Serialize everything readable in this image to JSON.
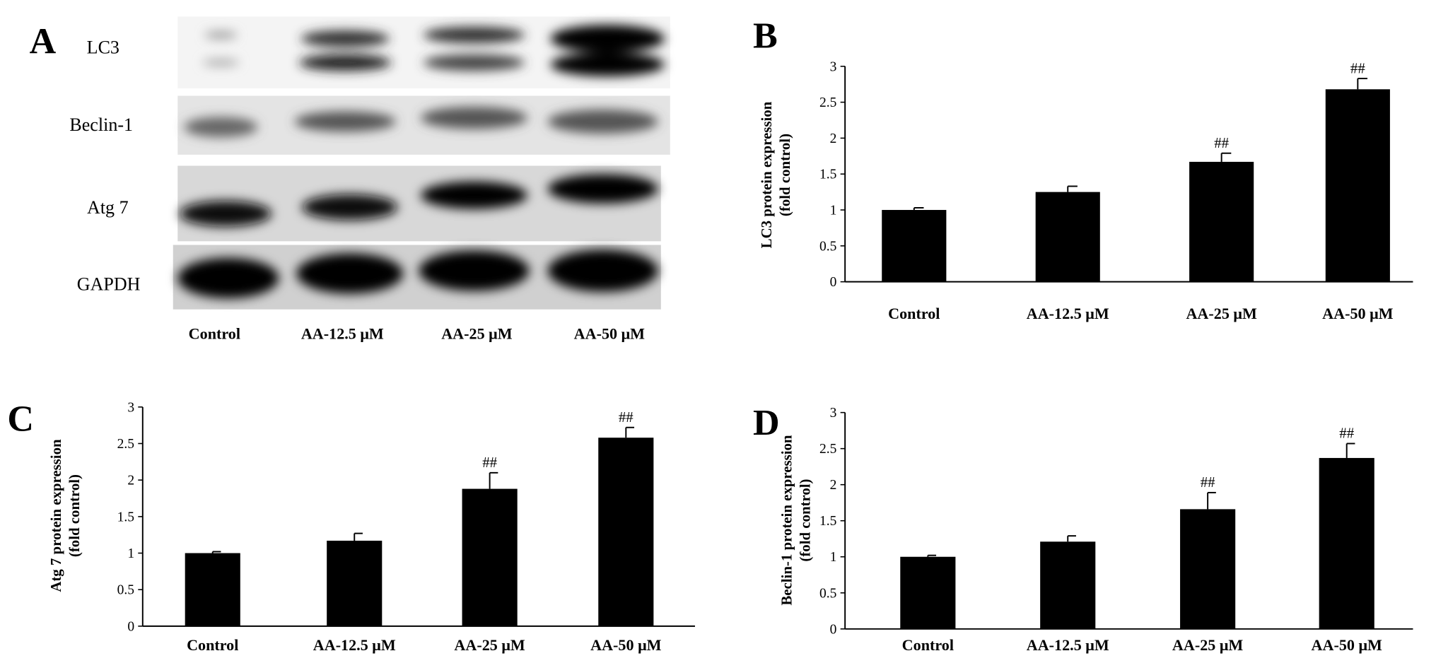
{
  "blot": {
    "label": "A",
    "rows": [
      "LC3",
      "Beclin-1",
      "Atg 7",
      "GAPDH"
    ],
    "lanes": [
      "Control",
      "AA-12.5 μM",
      "AA-25 μM",
      "AA-50 μM"
    ]
  },
  "chart_data": [
    {
      "type": "bar",
      "panel_label": "B",
      "ylabel": [
        "LC3 protein expression",
        "(fold control)"
      ],
      "categories": [
        "Control",
        "AA-12.5 μM",
        "AA-25 μM",
        "AA-50 μM"
      ],
      "values": [
        1.0,
        1.25,
        1.67,
        2.68
      ],
      "errors": [
        0.03,
        0.08,
        0.12,
        0.15
      ],
      "annotations": [
        null,
        null,
        "##",
        "##"
      ],
      "color": "#000000",
      "ylim": [
        0,
        3
      ],
      "yticks": [
        0,
        0.5,
        1,
        1.5,
        2,
        2.5,
        3
      ]
    },
    {
      "type": "bar",
      "panel_label": "C",
      "ylabel": [
        "Atg 7 protein expression",
        "(fold control)"
      ],
      "categories": [
        "Control",
        "AA-12.5 μM",
        "AA-25 μM",
        "AA-50 μM"
      ],
      "values": [
        1.0,
        1.17,
        1.88,
        2.58
      ],
      "errors": [
        0.02,
        0.1,
        0.22,
        0.14
      ],
      "annotations": [
        null,
        null,
        "##",
        "##"
      ],
      "color": "#000000",
      "ylim": [
        0,
        3
      ],
      "yticks": [
        0,
        0.5,
        1,
        1.5,
        2,
        2.5,
        3
      ]
    },
    {
      "type": "bar",
      "panel_label": "D",
      "ylabel": [
        "Beclin-1 protein expression",
        "(fold control)"
      ],
      "categories": [
        "Control",
        "AA-12.5 μM",
        "AA-25 μM",
        "AA-50 μM"
      ],
      "values": [
        1.0,
        1.21,
        1.66,
        2.37
      ],
      "errors": [
        0.02,
        0.08,
        0.23,
        0.2
      ],
      "annotations": [
        null,
        null,
        "##",
        "##"
      ],
      "color": "#000000",
      "ylim": [
        0,
        3
      ],
      "yticks": [
        0,
        0.5,
        1,
        1.5,
        2,
        2.5,
        3
      ]
    }
  ]
}
